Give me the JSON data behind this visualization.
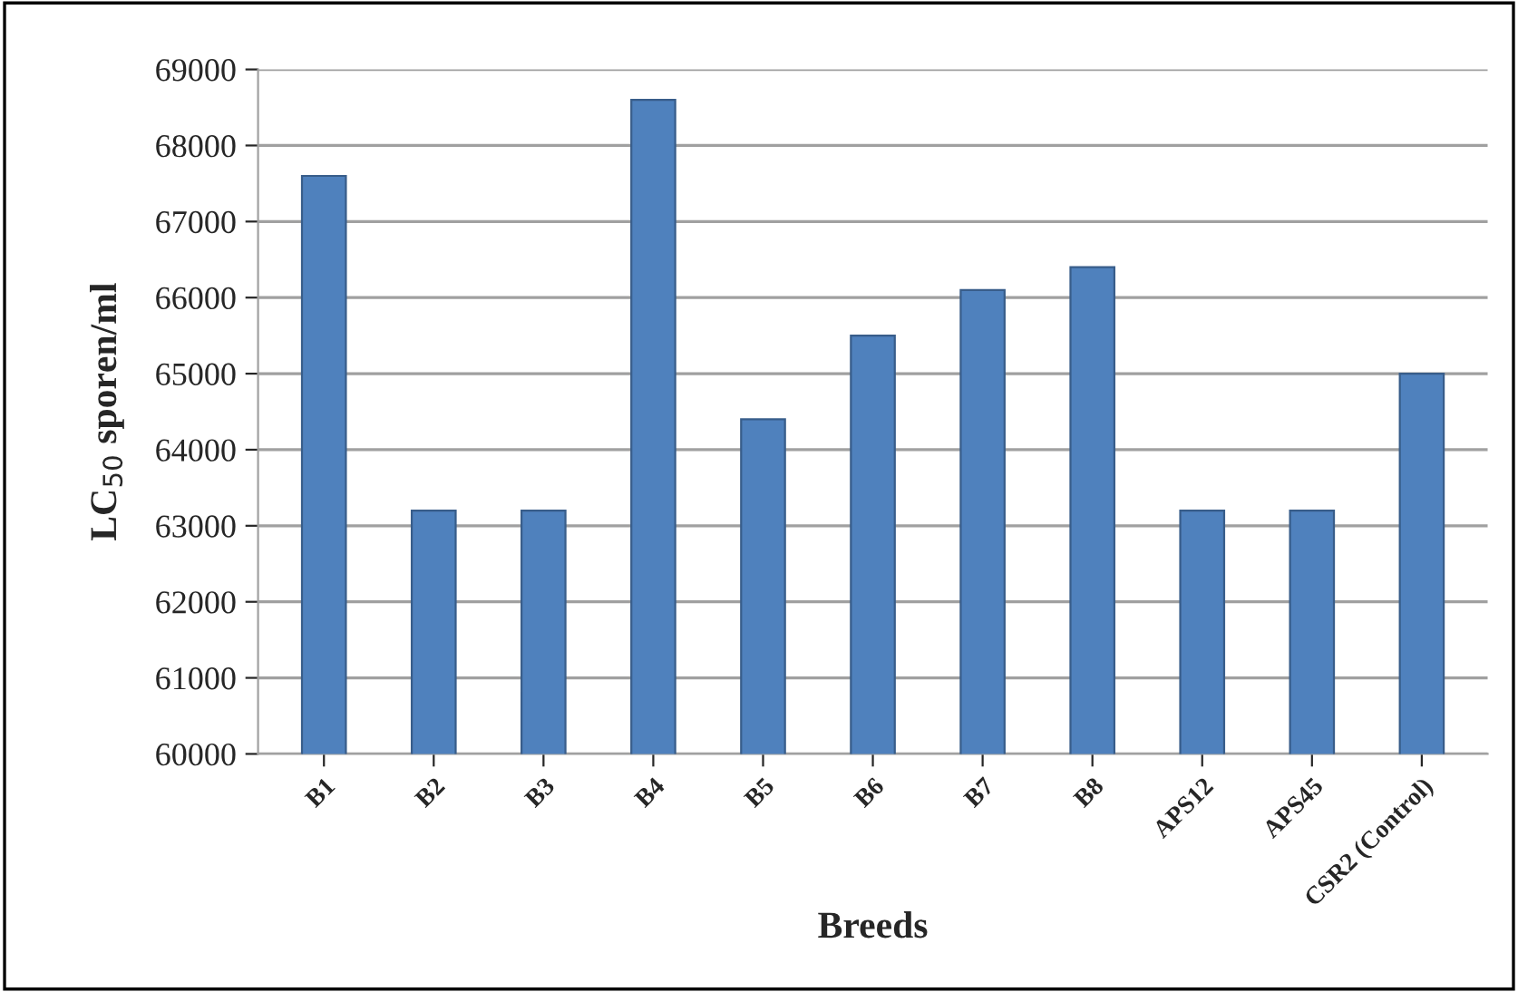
{
  "chart_data": {
    "type": "bar",
    "xlabel": "Breeds",
    "ylabel": "LC$_{50}$ sporen/ml",
    "categories": [
      "B1",
      "B2",
      "B3",
      "B4",
      "B5",
      "B6",
      "B7",
      "B8",
      "APS12",
      "APS45",
      "CSR2 (Control)"
    ],
    "values": [
      67600,
      63200,
      63200,
      68600,
      64400,
      65500,
      66100,
      66400,
      63200,
      63200,
      65000
    ],
    "color": "#4f81bd",
    "ylim": [
      60000,
      69000
    ],
    "yticks": [
      60000,
      61000,
      62000,
      63000,
      64000,
      65000,
      66000,
      67000,
      68000,
      69000
    ],
    "grid": "y"
  }
}
